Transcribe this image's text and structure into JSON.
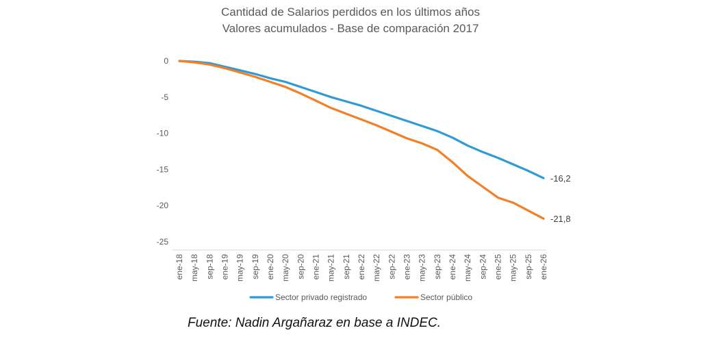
{
  "chart_data": {
    "type": "line",
    "title": "Cantidad de Salarios perdidos en los últimos años",
    "subtitle": "Valores acumulados - Base de comparación 2017",
    "xlabel": "",
    "ylabel": "",
    "ylim": [
      -25,
      0
    ],
    "yticks": [
      "0",
      "-5",
      "-10",
      "-15",
      "-20",
      "-25"
    ],
    "ytick_values": [
      0,
      -5,
      -10,
      -15,
      -20,
      -25
    ],
    "categories": [
      "ene-18",
      "may-18",
      "sep-18",
      "ene-19",
      "may-19",
      "sep-19",
      "ene-20",
      "may-20",
      "sep-20",
      "ene-21",
      "may-21",
      "sep-21",
      "ene-22",
      "may-22",
      "sep-22",
      "ene-23",
      "may-23",
      "sep-23",
      "ene-24",
      "may-24",
      "sep-24",
      "ene-25",
      "may-25",
      "sep-25",
      "ene-26"
    ],
    "grid": false,
    "legend_position": "bottom",
    "series": [
      {
        "name": "Sector privado registrado",
        "color": "#2E9BD6",
        "values": [
          0,
          -0.1,
          -0.3,
          -0.8,
          -1.3,
          -1.8,
          -2.4,
          -2.9,
          -3.6,
          -4.3,
          -5.0,
          -5.6,
          -6.2,
          -6.9,
          -7.6,
          -8.3,
          -9.0,
          -9.7,
          -10.6,
          -11.7,
          -12.6,
          -13.4,
          -14.3,
          -15.2,
          -16.2
        ],
        "end_label": "-16,2"
      },
      {
        "name": "Sector público",
        "color": "#F28028",
        "values": [
          0,
          -0.2,
          -0.5,
          -1.0,
          -1.6,
          -2.2,
          -2.9,
          -3.6,
          -4.5,
          -5.5,
          -6.5,
          -7.3,
          -8.1,
          -8.9,
          -9.8,
          -10.7,
          -11.4,
          -12.3,
          -14.0,
          -15.9,
          -17.4,
          -18.9,
          -19.6,
          -20.7,
          -21.8
        ],
        "end_label": "-21,8"
      }
    ],
    "source": "Fuente: Nadin Argañaraz en base a INDEC."
  }
}
